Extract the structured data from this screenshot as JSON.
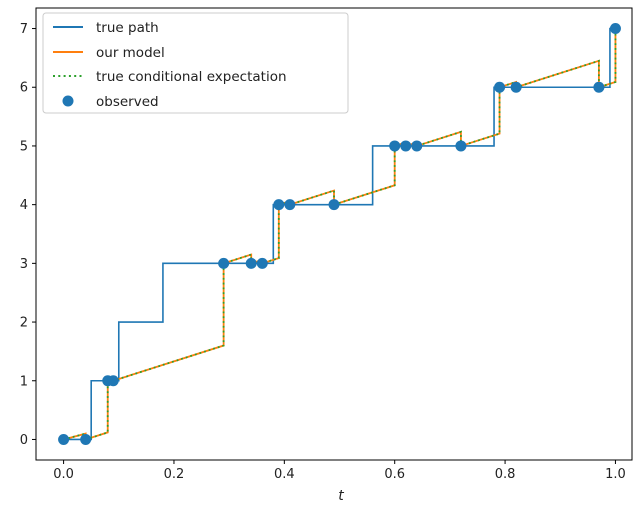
{
  "chart_data": {
    "type": "line",
    "xlabel": "t",
    "ylabel": "",
    "xlim": [
      -0.05,
      1.03
    ],
    "ylim": [
      -0.35,
      7.35
    ],
    "xticks": [
      0.0,
      0.2,
      0.4,
      0.6,
      0.8,
      1.0
    ],
    "xtick_labels": [
      "0.0",
      "0.2",
      "0.4",
      "0.6",
      "0.8",
      "1.0"
    ],
    "yticks": [
      0,
      1,
      2,
      3,
      4,
      5,
      6,
      7
    ],
    "ytick_labels": [
      "0",
      "1",
      "2",
      "3",
      "4",
      "5",
      "6",
      "7"
    ],
    "legend_position": "top-left",
    "colors": {
      "true_path": "#1f77b4",
      "our_model": "#ff7f0e",
      "true_conditional": "#2ca02c",
      "observed": "#1f77b4"
    },
    "series": [
      {
        "name": "true path",
        "kind": "line",
        "x": [
          0.0,
          0.05,
          0.05,
          0.1,
          0.1,
          0.18,
          0.18,
          0.3,
          0.3,
          0.38,
          0.38,
          0.56,
          0.56,
          0.75,
          0.75,
          0.78,
          0.78,
          0.97,
          0.97,
          0.99,
          0.99,
          1.0
        ],
        "y": [
          0,
          0,
          1,
          1,
          2,
          2,
          3,
          3,
          3,
          3,
          4,
          4,
          5,
          5,
          5,
          5,
          6,
          6,
          6,
          6,
          7,
          7
        ]
      },
      {
        "name": "our model",
        "kind": "line",
        "x": [
          0.0,
          0.04,
          0.04,
          0.08,
          0.08,
          0.09,
          0.09,
          0.29,
          0.29,
          0.34,
          0.34,
          0.36,
          0.36,
          0.39,
          0.39,
          0.41,
          0.41,
          0.49,
          0.49,
          0.6,
          0.6,
          0.62,
          0.62,
          0.64,
          0.64,
          0.72,
          0.72,
          0.79,
          0.79,
          0.82,
          0.82,
          0.97,
          0.97,
          1.0,
          1.0
        ],
        "y": [
          0.0,
          0.1,
          0.0,
          0.12,
          1.0,
          1.03,
          1.0,
          1.6,
          3.0,
          3.15,
          3.0,
          3.06,
          3.0,
          3.09,
          4.0,
          4.06,
          4.0,
          4.24,
          4.0,
          4.33,
          5.0,
          5.06,
          5.0,
          5.06,
          5.0,
          5.24,
          5.0,
          5.21,
          6.0,
          6.09,
          6.0,
          6.45,
          6.0,
          6.09,
          7.0
        ]
      },
      {
        "name": "true conditional expectation",
        "kind": "line",
        "x": [
          0.0,
          0.04,
          0.04,
          0.08,
          0.08,
          0.09,
          0.09,
          0.29,
          0.29,
          0.34,
          0.34,
          0.36,
          0.36,
          0.39,
          0.39,
          0.41,
          0.41,
          0.49,
          0.49,
          0.6,
          0.6,
          0.62,
          0.62,
          0.64,
          0.64,
          0.72,
          0.72,
          0.79,
          0.79,
          0.82,
          0.82,
          0.97,
          0.97,
          1.0,
          1.0
        ],
        "y": [
          0.0,
          0.1,
          0.0,
          0.12,
          1.0,
          1.03,
          1.0,
          1.6,
          3.0,
          3.15,
          3.0,
          3.06,
          3.0,
          3.09,
          4.0,
          4.06,
          4.0,
          4.24,
          4.0,
          4.33,
          5.0,
          5.06,
          5.0,
          5.06,
          5.0,
          5.24,
          5.0,
          5.21,
          6.0,
          6.09,
          6.0,
          6.45,
          6.0,
          6.09,
          7.0
        ]
      },
      {
        "name": "observed",
        "kind": "scatter",
        "x": [
          0.0,
          0.04,
          0.08,
          0.09,
          0.29,
          0.34,
          0.36,
          0.39,
          0.41,
          0.49,
          0.6,
          0.62,
          0.64,
          0.72,
          0.79,
          0.82,
          0.97,
          1.0
        ],
        "y": [
          0,
          0,
          1,
          1,
          3,
          3,
          3,
          4,
          4,
          4,
          5,
          5,
          5,
          5,
          6,
          6,
          6,
          7
        ]
      }
    ]
  }
}
